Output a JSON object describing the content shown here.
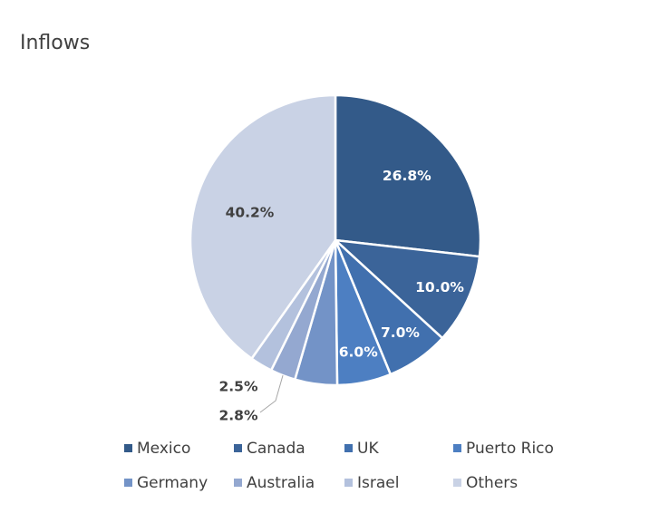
{
  "chart_data": {
    "type": "pie",
    "title": "Inflows",
    "categories": [
      "Mexico",
      "Canada",
      "UK",
      "Puerto Rico",
      "Germany",
      "Australia",
      "Israel",
      "Others"
    ],
    "values": [
      26.8,
      10.0,
      7.0,
      6.0,
      4.7,
      2.8,
      2.5,
      40.2
    ],
    "labels": [
      "26.8%",
      "10.0%",
      "7.0%",
      "6.0%",
      "",
      "2.8%",
      "2.5%",
      "40.2%"
    ],
    "colors": [
      "#335a89",
      "#3b6499",
      "#4170ae",
      "#4d7fc2",
      "#7393c7",
      "#94a8d0",
      "#b3c1dd",
      "#c9d2e5"
    ],
    "label_colors": [
      "#ffffff",
      "#ffffff",
      "#ffffff",
      "#ffffff",
      "#ffffff",
      "#404040",
      "#404040",
      "#404040"
    ],
    "legend_position": "bottom"
  }
}
